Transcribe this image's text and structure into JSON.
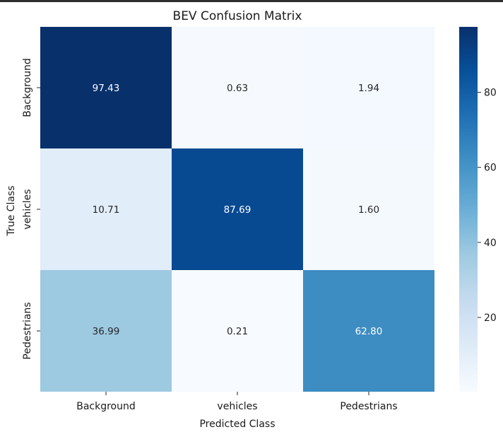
{
  "chart_data": {
    "type": "heatmap",
    "title": "BEV Confusion Matrix",
    "xlabel": "Predicted Class",
    "ylabel": "True Class",
    "x_categories": [
      "Background",
      "vehicles",
      "Pedestrians"
    ],
    "y_categories": [
      "Background",
      "vehicles",
      "Pedestrians"
    ],
    "values": [
      [
        97.43,
        0.63,
        1.94
      ],
      [
        10.71,
        87.69,
        1.6
      ],
      [
        36.99,
        0.21,
        62.8
      ]
    ],
    "value_labels": [
      [
        "97.43",
        "0.63",
        "1.94"
      ],
      [
        "10.71",
        "87.69",
        "1.60"
      ],
      [
        "36.99",
        "0.21",
        "62.80"
      ]
    ],
    "colormap": "Blues",
    "colorbar": {
      "range": [
        0.21,
        97.43
      ],
      "ticks": [
        20,
        40,
        60,
        80
      ],
      "tick_labels": [
        "20",
        "40",
        "60",
        "80"
      ]
    }
  }
}
